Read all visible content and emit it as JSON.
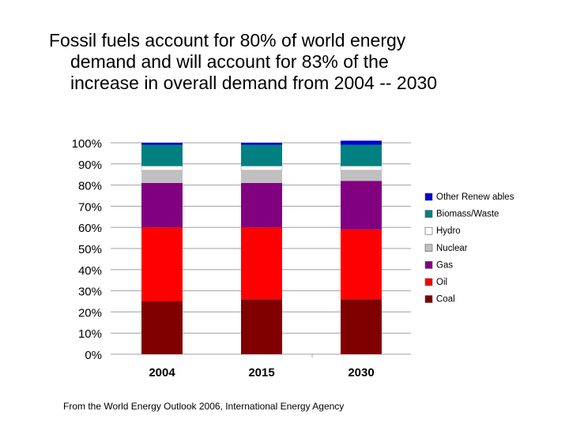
{
  "headline": {
    "line1": "Fossil fuels account for 80% of world energy",
    "line2": "demand and will account for 83% of the",
    "line3": "increase in overall demand from 2004 -- 2030"
  },
  "source": "From the World Energy Outlook 2006, International Energy Agency",
  "chart_data": {
    "type": "bar",
    "stacked": true,
    "categories": [
      "2004",
      "2015",
      "2030"
    ],
    "ylim": [
      0,
      100
    ],
    "yticks": [
      "0%",
      "10%",
      "20%",
      "30%",
      "40%",
      "50%",
      "60%",
      "70%",
      "80%",
      "90%",
      "100%"
    ],
    "series": [
      {
        "name": "Coal",
        "color": "#800000",
        "values": [
          25,
          26,
          26
        ]
      },
      {
        "name": "Oil",
        "color": "#ff0000",
        "values": [
          35,
          34,
          33
        ]
      },
      {
        "name": "Gas",
        "color": "#800080",
        "values": [
          21,
          21,
          23
        ]
      },
      {
        "name": "Nuclear",
        "color": "#c0c0c0",
        "values": [
          6,
          6,
          5
        ]
      },
      {
        "name": "Hydro",
        "color": "#ffffff",
        "values": [
          2,
          2,
          2
        ]
      },
      {
        "name": "Biomass/Waste",
        "color": "#008080",
        "values": [
          10,
          10,
          10
        ]
      },
      {
        "name": "Other Renewables",
        "color": "#0000cc",
        "values": [
          1,
          1,
          2
        ]
      }
    ],
    "legend_entries": [
      "Other Renew ables",
      "Biomass/Waste",
      "Hydro",
      "Nuclear",
      "Gas",
      "Oil",
      "Coal"
    ],
    "legend_position": "right",
    "grid": true
  }
}
